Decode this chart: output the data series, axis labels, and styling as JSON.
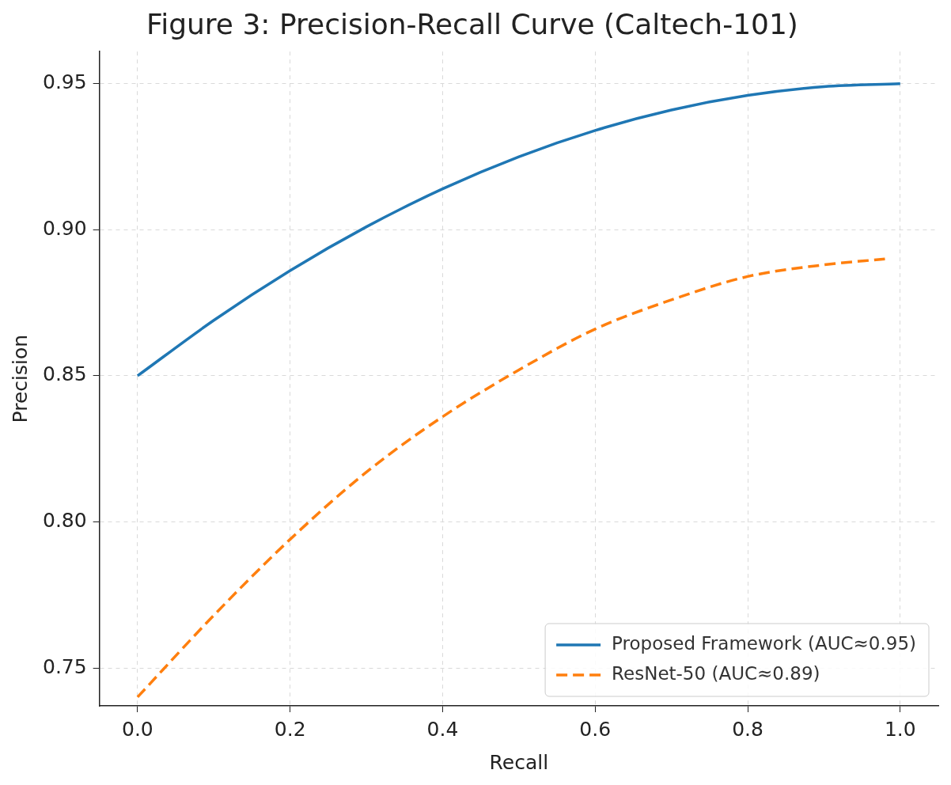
{
  "chart_data": {
    "type": "line",
    "title": "Figure 3: Precision-Recall Curve (Caltech-101)",
    "xlabel": "Recall",
    "ylabel": "Precision",
    "xlim": [
      -0.05,
      1.05
    ],
    "xticks": [
      {
        "value": 0,
        "label": "0.0"
      },
      0.2,
      0.4,
      0.6,
      0.8,
      {
        "value": 1,
        "label": "1.0"
      }
    ],
    "ylim": [
      0.737,
      0.961
    ],
    "yticks": [
      {
        "value": 0.75,
        "label": "0.75"
      },
      {
        "value": 0.8,
        "label": "0.80"
      },
      {
        "value": 0.85,
        "label": "0.85"
      },
      {
        "value": 0.9,
        "label": "0.90"
      },
      {
        "value": 0.95,
        "label": "0.95"
      }
    ],
    "grid": true,
    "legend": "bottom right",
    "marker": "none",
    "series": [
      {
        "name": "Proposed Framework (AUC≈0.95)",
        "color": "#1f77b4",
        "line_style": "solid",
        "x": [
          0,
          0.1,
          0.2,
          0.3,
          0.4,
          0.5,
          0.6,
          0.7,
          0.8,
          0.9,
          1.0
        ],
        "values": [
          0.85,
          0.869,
          0.886,
          0.901,
          0.914,
          0.925,
          0.934,
          0.941,
          0.946,
          0.949,
          0.95
        ]
      },
      {
        "name": "ResNet-50 (AUC≈0.89)",
        "color": "#ff7f0e",
        "line_style": "dashed",
        "x": [
          0,
          0.1,
          0.2,
          0.3,
          0.4,
          0.5,
          0.6,
          0.7,
          0.8,
          0.9,
          0.98
        ],
        "values": [
          0.74,
          0.768,
          0.794,
          0.817,
          0.836,
          0.852,
          0.866,
          0.876,
          0.884,
          0.888,
          0.89
        ]
      }
    ]
  }
}
